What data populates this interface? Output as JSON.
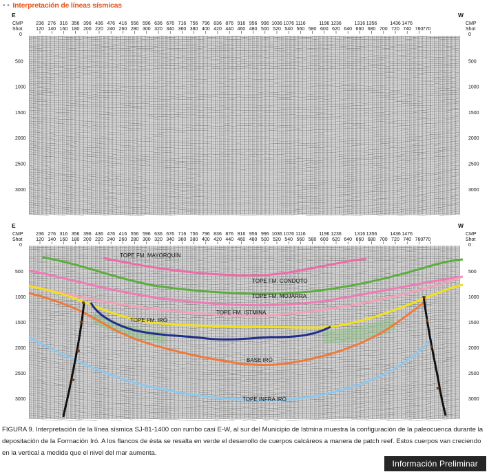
{
  "header": {
    "dots": "• •",
    "title": "Interpretación de líneas sísmicas"
  },
  "sections": [
    {
      "id": "top",
      "left_label": "E",
      "right_label": "W"
    },
    {
      "id": "bottom",
      "left_label": "E",
      "right_label": "W"
    }
  ],
  "axis": {
    "cmp_label": "CMP",
    "shot_label": "Shot",
    "cmp_values": [
      "236",
      "276",
      "316",
      "356",
      "396",
      "436",
      "476",
      "416",
      "556",
      "596",
      "636",
      "676",
      "716",
      "756",
      "796",
      "836",
      "876",
      "916",
      "956",
      "996",
      "1036",
      "1076",
      "1116",
      "",
      "1196",
      "1236",
      "",
      "1316",
      "1356",
      "",
      "1436",
      "1476",
      ""
    ],
    "shot_values": [
      "120",
      "140",
      "160",
      "180",
      "200",
      "220",
      "240",
      "260",
      "280",
      "300",
      "320",
      "340",
      "360",
      "380",
      "400",
      "420",
      "440",
      "460",
      "480",
      "500",
      "520",
      "540",
      "560",
      "580",
      "600",
      "620",
      "640",
      "660",
      "680",
      "700",
      "720",
      "740",
      "760",
      "770"
    ],
    "time_ticks": [
      "0",
      "500",
      "1000",
      "1500",
      "2000",
      "2500",
      "3000"
    ]
  },
  "horizons": [
    {
      "name": "TOPE FM. MAYORQUÍN",
      "color": "#ef6aa8"
    },
    {
      "name": "TOPE FM. CONDOTO",
      "color": "#5aae3c"
    },
    {
      "name": "TOPE FM. MOJARRA",
      "color": "#f07ab6"
    },
    {
      "name": "TOPE FM. ISTMINA",
      "color": "#f3a0b8"
    },
    {
      "name": "TOPE FM. IRÓ",
      "color": "#f1e21a"
    },
    {
      "name": "BASE IRÓ",
      "color": "#ef7a3a"
    },
    {
      "name": "TOPE INFRA IRÓ",
      "color": "#8fc8ee"
    }
  ],
  "iro_surface_color": "#1f2f8c",
  "reef_color": "#7cc36a",
  "fault_color": "#111111",
  "caption": "FIGURA 9. Interpretación de la línea sísmica SJ-81-1400 con rumbo casi E-W, al sur del Municipio de Istmina muestra la configuración de la paleocuenca durante la depositación de la Formación Iró. A los flancos de ésta se resalta en verde el desarrollo de cuerpos calcáreos a manera de patch reef. Estos cuerpos van creciendo en la vertical a medida que el nivel del mar aumenta.",
  "badge": "Información Preliminar"
}
